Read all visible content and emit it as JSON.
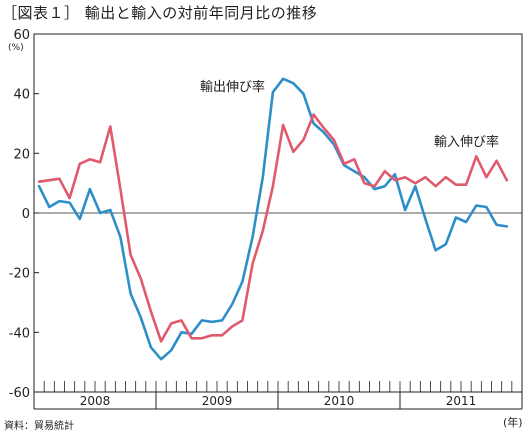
{
  "colors": {
    "exports": "#2e8fc8",
    "imports": "#e05a6e",
    "axis": "#231f20",
    "grid": "#231f20"
  },
  "source": "資料：貿易統計",
  "x_unit": "(年)",
  "chart_data": {
    "type": "line",
    "title": "［図表１］ 輸出と輸入の対前年同月比の推移",
    "ylabel": "(%)",
    "xlabel": "",
    "ylim": [
      -60,
      60
    ],
    "yticks": [
      60,
      40,
      20,
      0,
      -20,
      -40,
      -60
    ],
    "grid": false,
    "zero_line": true,
    "x_periods": [
      "2008/1",
      "2008/2",
      "2008/3",
      "2008/4",
      "2008/5",
      "2008/6",
      "2008/7",
      "2008/8",
      "2008/9",
      "2008/10",
      "2008/11",
      "2008/12",
      "2009/1",
      "2009/2",
      "2009/3",
      "2009/4",
      "2009/5",
      "2009/6",
      "2009/7",
      "2009/8",
      "2009/9",
      "2009/10",
      "2009/11",
      "2009/12",
      "2010/1",
      "2010/2",
      "2010/3",
      "2010/4",
      "2010/5",
      "2010/6",
      "2010/7",
      "2010/8",
      "2010/9",
      "2010/10",
      "2010/11",
      "2010/12",
      "2011/1",
      "2011/2",
      "2011/3",
      "2011/4",
      "2011/5",
      "2011/6",
      "2011/7",
      "2011/8",
      "2011/9",
      "2011/10",
      "2011/11",
      "2011/12"
    ],
    "year_labels": [
      "2008",
      "2009",
      "2010",
      "2011"
    ],
    "series": [
      {
        "name": "輸出伸び率",
        "color_key": "exports",
        "values": [
          9,
          2,
          4,
          3.5,
          -2,
          8,
          0,
          1,
          -8,
          -27,
          -35,
          -45,
          -49,
          -46,
          -40,
          -40.5,
          -36,
          -36.5,
          -36,
          -30.5,
          -23,
          -8,
          12,
          40.5,
          45,
          43.5,
          40,
          30,
          27,
          23,
          16,
          14,
          12,
          8,
          9,
          13,
          1,
          9,
          -2,
          -12.5,
          -10.5,
          -1.5,
          -3,
          2.5,
          2,
          -4,
          -4.5,
          null
        ]
      },
      {
        "name": "輸入伸び率",
        "color_key": "imports",
        "values": [
          10.5,
          11,
          11.5,
          5,
          16.5,
          18,
          17,
          29,
          8,
          -14,
          -22,
          -33,
          -43,
          -37,
          -36,
          -42,
          -42,
          -41,
          -41,
          -38,
          -36,
          -17,
          -6,
          9,
          29.5,
          20.5,
          24.5,
          33,
          28.5,
          24.5,
          16.5,
          18,
          10,
          9,
          14,
          11,
          12,
          10,
          12,
          9,
          12,
          9.5,
          9.5,
          19,
          12,
          17.5,
          11,
          null
        ]
      }
    ],
    "annotations": [
      {
        "text": "輸出伸び率",
        "series": 0
      },
      {
        "text": "輸入伸び率",
        "series": 1
      }
    ]
  }
}
